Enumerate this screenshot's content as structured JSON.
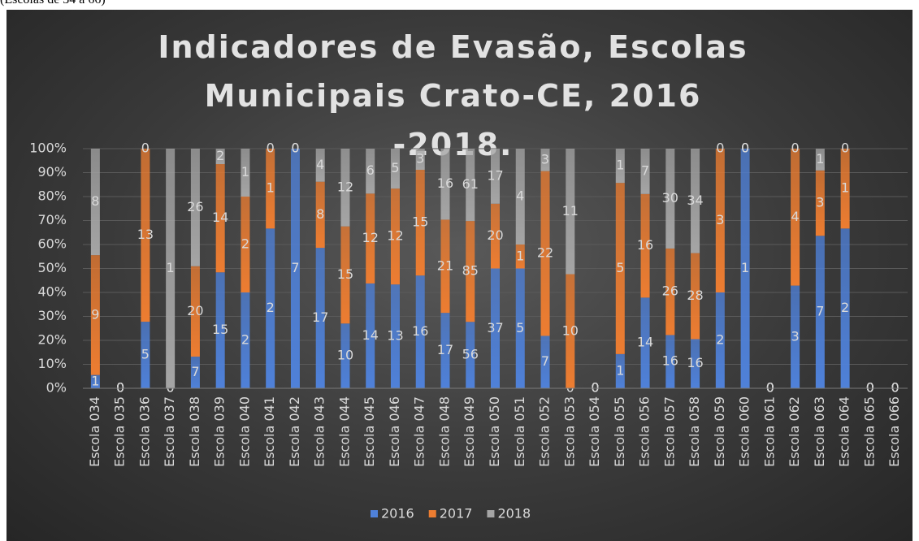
{
  "caption": "(Escolas de 34 a 66)",
  "chart_data": {
    "type": "stacked-percent-bar",
    "title": "Indicadores de Evasão, Escolas Municipais Crato-CE, 2016 -2018.",
    "categories": [
      "Escola 034",
      "Escola 035",
      "Escola 036",
      "Escola 037",
      "Escola 038",
      "Escola 039",
      "Escola 040",
      "Escola 041",
      "Escola 042",
      "Escola 043",
      "Escola 044",
      "Escola 045",
      "Escola 046",
      "Escola 047",
      "Escola 048",
      "Escola 049",
      "Escola 050",
      "Escola 051",
      "Escola 052",
      "Escola 053",
      "Escola 054",
      "Escola 055",
      "Escola 056",
      "Escola 057",
      "Escola 058",
      "Escola 059",
      "Escola 060",
      "Escola 061",
      "Escola 062",
      "Escola 063",
      "Escola 064",
      "Escola 065",
      "Escola 066"
    ],
    "series": [
      {
        "name": "2016",
        "color": "#4f81d9",
        "values": [
          1,
          0,
          5,
          0,
          7,
          15,
          2,
          2,
          7,
          17,
          10,
          14,
          13,
          16,
          17,
          56,
          37,
          5,
          7,
          0,
          0,
          1,
          14,
          16,
          16,
          2,
          1,
          0,
          3,
          7,
          2,
          0,
          0
        ]
      },
      {
        "name": "2017",
        "color": "#ed7d31",
        "values": [
          9,
          0,
          13,
          0,
          20,
          14,
          2,
          1,
          0,
          8,
          15,
          12,
          12,
          15,
          21,
          85,
          20,
          1,
          22,
          10,
          0,
          5,
          16,
          26,
          28,
          3,
          0,
          0,
          4,
          3,
          1,
          0,
          0
        ]
      },
      {
        "name": "2018",
        "color": "#a5a5a5",
        "values": [
          8,
          0,
          0,
          1,
          26,
          2,
          1,
          0,
          0,
          4,
          12,
          6,
          5,
          3,
          16,
          61,
          17,
          4,
          3,
          11,
          0,
          1,
          7,
          30,
          34,
          0,
          0,
          0,
          0,
          1,
          0,
          0,
          0
        ]
      }
    ],
    "ylim": [
      0,
      100
    ],
    "yticks": [
      {
        "value": 0,
        "label": "0%"
      },
      {
        "value": 10,
        "label": "10%"
      },
      {
        "value": 20,
        "label": "20%"
      },
      {
        "value": 30,
        "label": "30%"
      },
      {
        "value": 40,
        "label": "40%"
      },
      {
        "value": 50,
        "label": "50%"
      },
      {
        "value": 60,
        "label": "60%"
      },
      {
        "value": 70,
        "label": "70%"
      },
      {
        "value": 80,
        "label": "80%"
      },
      {
        "value": 90,
        "label": "90%"
      },
      {
        "value": 100,
        "label": "100%"
      }
    ],
    "grid": true,
    "legend": "bottom"
  }
}
